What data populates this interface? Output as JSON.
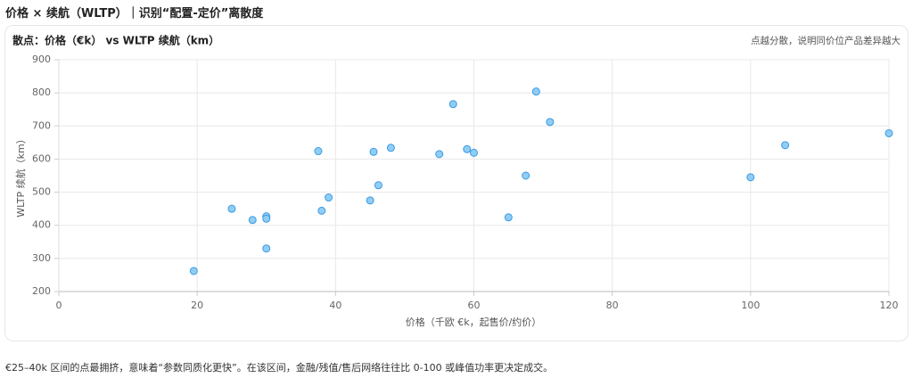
{
  "header": {
    "title": "价格 × 续航（WLTP）｜识别“配置-定价”离散度"
  },
  "chart_data": {
    "type": "scatter",
    "title": "散点：价格（€k） vs WLTP 续航（km）",
    "note": "点越分散，说明同价位产品差异越大",
    "x_label": "价格（千欧 €k，起售价/约价）",
    "y_label": "WLTP 续航（km）",
    "x": [
      19.5,
      25,
      28,
      30,
      30,
      30,
      37.5,
      38,
      39,
      45,
      45.5,
      46.2,
      48,
      55,
      57,
      59,
      60,
      65,
      67.5,
      69,
      71,
      100,
      105,
      120
    ],
    "values": [
      262,
      450,
      416,
      427,
      420,
      330,
      624,
      444,
      484,
      475,
      622,
      521,
      634,
      615,
      766,
      630,
      619,
      424,
      550,
      804,
      712,
      545,
      642,
      678
    ],
    "color": "#90cdf4",
    "edge_color": "#3b9ae1",
    "xlim": [
      0,
      120
    ],
    "ylim": [
      200,
      900
    ],
    "xticks": [
      0,
      20,
      40,
      60,
      80,
      100,
      120
    ],
    "yticks": [
      200,
      300,
      400,
      500,
      600,
      700,
      800,
      900
    ],
    "grid": true
  },
  "footer": {
    "text": "€25–40k 区间的点最拥挤，意味着“参数同质化更快”。在该区间，金融/残值/售后网络往往比 0-100 或峰值功率更决定成交。"
  }
}
